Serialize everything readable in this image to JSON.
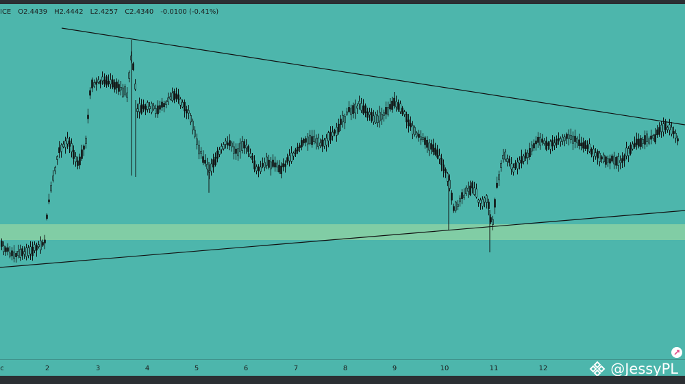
{
  "legend": {
    "symbol_fragment": "ICE",
    "open": "O2.4439",
    "high": "H2.4442",
    "low": "L2.4257",
    "close": "C2.4340",
    "change": "-0.0100 (-0.41%)"
  },
  "x_axis": {
    "first_label": "c",
    "labels": [
      "2",
      "3",
      "4",
      "5",
      "6",
      "7",
      "8",
      "9",
      "10",
      "11",
      "12"
    ]
  },
  "watermark": {
    "text": "@JessyPL"
  },
  "colors": {
    "background": "#4db6ac",
    "support_zone": "#93d4a3",
    "candles": "#111111",
    "trendlines": "#111111",
    "watermark": "#ffffff"
  },
  "icons": [
    "binance-logo-icon",
    "share-icon"
  ],
  "chart_data": {
    "type": "candlestick",
    "annotations": [
      "descending-resistance-trendline",
      "ascending-support-trendline",
      "horizontal-support-zone"
    ],
    "y_axis": "not shown",
    "note_values": {
      "last_open": 2.4439,
      "last_high": 2.4442,
      "last_low": 2.4257,
      "last_close": 2.434,
      "last_change": -0.01,
      "last_change_pct": -0.41
    }
  }
}
